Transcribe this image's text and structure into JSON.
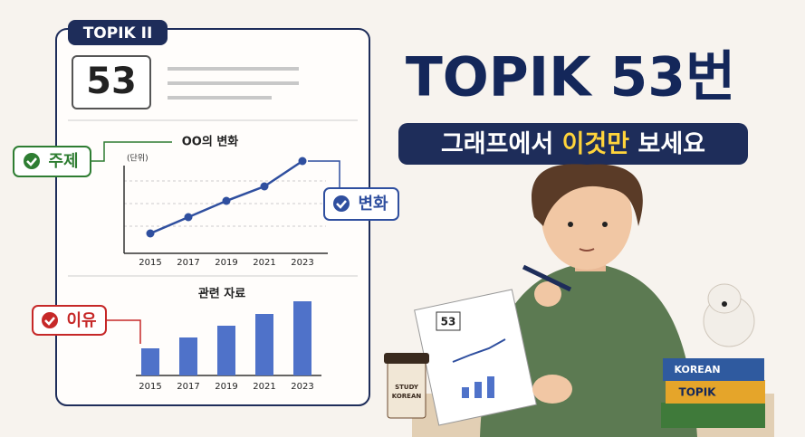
{
  "badge": "TOPIK II",
  "question_number": "53",
  "line_chart": {
    "type": "line",
    "title": "OO의 변화",
    "unit": "(단위)",
    "categories": [
      "2015",
      "2017",
      "2019",
      "2021",
      "2023"
    ],
    "values": [
      22,
      40,
      58,
      74,
      102
    ],
    "ylim": [
      0,
      110
    ],
    "color": "#2f4f9f"
  },
  "bar_chart": {
    "type": "bar",
    "title": "관련 자료",
    "categories": [
      "2015",
      "2017",
      "2019",
      "2021",
      "2023"
    ],
    "values": [
      30,
      42,
      55,
      68,
      82
    ],
    "ylim": [
      0,
      100
    ],
    "color": "#4f72c9"
  },
  "callouts": {
    "topic": "주제",
    "change": "변화",
    "reason": "이유"
  },
  "headline": "TOPIK 53번",
  "subtitle": {
    "before": "그래프에서",
    "highlight": "이것만",
    "after": "보세요"
  },
  "illustration": {
    "paper_number": "53",
    "cup_line1": "STUDY",
    "cup_line2": "KOREAN",
    "book1": "KOREAN",
    "book2": "TOPIK"
  }
}
